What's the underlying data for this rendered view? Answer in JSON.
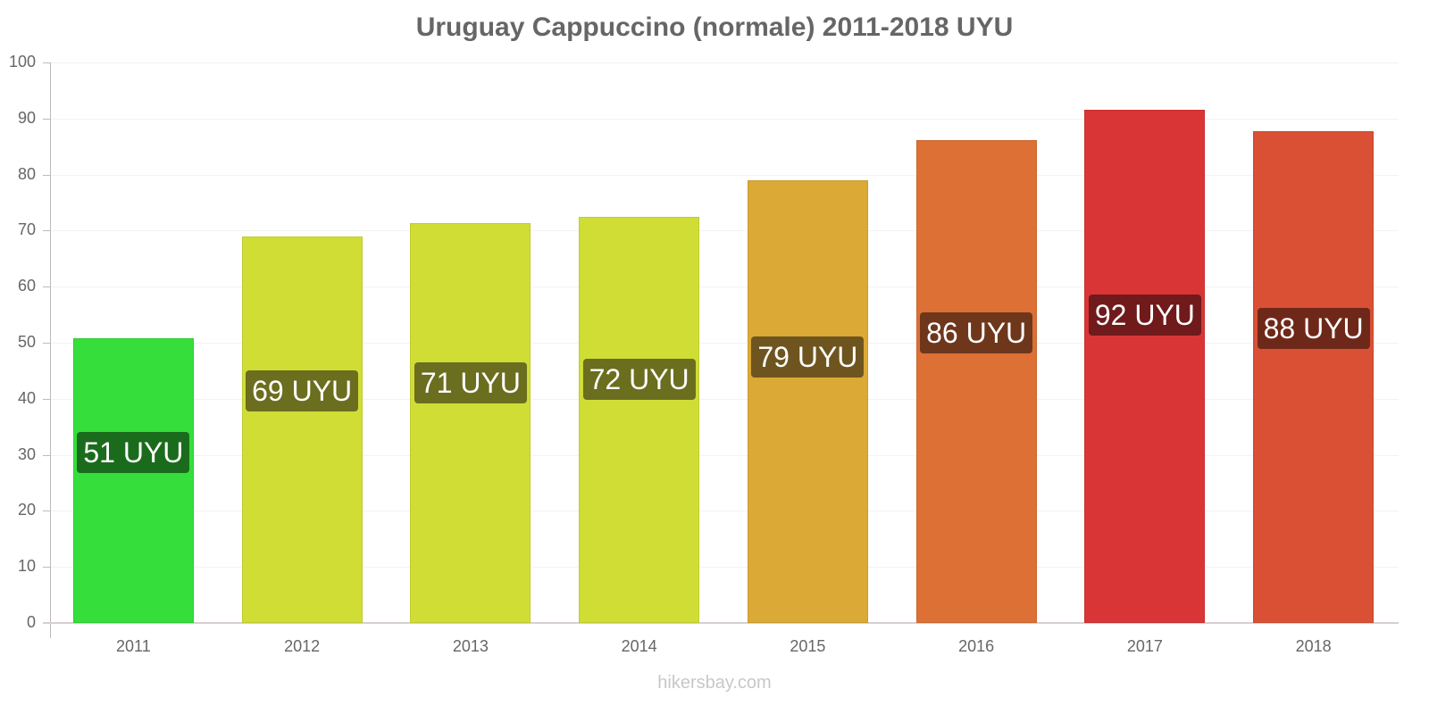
{
  "chart_data": {
    "type": "bar",
    "title": "Uruguay Cappuccino (normale) 2011-2018 UYU",
    "xlabel": "",
    "ylabel": "",
    "ylim": [
      0,
      100
    ],
    "yticks": [
      0,
      10,
      20,
      30,
      40,
      50,
      60,
      70,
      80,
      90,
      100
    ],
    "grid": true,
    "legend": null,
    "categories": [
      "2011",
      "2012",
      "2013",
      "2014",
      "2015",
      "2016",
      "2017",
      "2018"
    ],
    "values": [
      50.8,
      69,
      71.3,
      72.5,
      79,
      86.2,
      91.6,
      87.7
    ],
    "data_labels": [
      "51 UYU",
      "69 UYU",
      "71 UYU",
      "72 UYU",
      "79 UYU",
      "86 UYU",
      "92 UYU",
      "88 UYU"
    ],
    "bar_colors": [
      "#35de3a",
      "#d0dd35",
      "#d0dd35",
      "#d0dd35",
      "#dba935",
      "#dc7035",
      "#d93536",
      "#da5035"
    ],
    "label_colors": [
      "#1b6b1d",
      "#6a6e1e",
      "#6a6e1e",
      "#6a6e1e",
      "#6e5520",
      "#6e371c",
      "#701a1b",
      "#6e2819"
    ]
  },
  "title": "Uruguay Cappuccino (normale) 2011-2018 UYU",
  "watermark": "hikersbay.com"
}
